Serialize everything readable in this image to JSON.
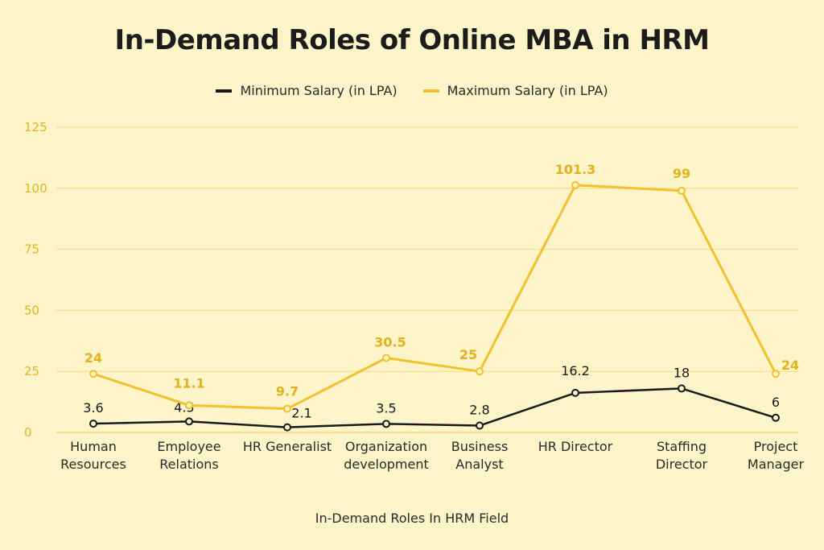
{
  "chart_data": {
    "type": "line",
    "title": "In-Demand Roles of Online MBA in HRM",
    "xlabel": "In-Demand Roles In HRM Field",
    "ylabel": "",
    "ylim": [
      0,
      125
    ],
    "yticks": [
      0,
      25,
      50,
      75,
      100,
      125
    ],
    "ytick_labels": [
      "0",
      "25",
      "50",
      "75",
      "100",
      "125"
    ],
    "grid": true,
    "legend_position": "top-center",
    "categories": [
      [
        "Human",
        "Resources"
      ],
      [
        "Employee",
        "Relations"
      ],
      [
        "HR Generalist"
      ],
      [
        "Organization",
        "development"
      ],
      [
        "Business",
        "Analyst"
      ],
      [
        "HR Director"
      ],
      [
        "Staffing",
        "Director"
      ],
      [
        "Project",
        "Manager"
      ]
    ],
    "series": [
      {
        "name": "Minimum Salary (in LPA)",
        "color": "#1a1a1a",
        "values": [
          3.6,
          4.5,
          2.1,
          3.5,
          2.8,
          16.2,
          18,
          6
        ],
        "labels": [
          "3.6",
          "4.5",
          "2.1",
          "3.5",
          "2.8",
          "16.2",
          "18",
          "6"
        ]
      },
      {
        "name": "Maximum Salary (in LPA)",
        "color": "#f2c12e",
        "values": [
          24,
          11.1,
          9.7,
          30.5,
          25,
          101.3,
          99,
          24
        ],
        "labels": [
          "24",
          "11.1",
          "9.7",
          "30.5",
          "25",
          "101.3",
          "99",
          "24"
        ]
      }
    ]
  },
  "colors": {
    "background": "#fdf4c9",
    "grid": "#f3dc80",
    "axis_text": "#e2b41e"
  }
}
